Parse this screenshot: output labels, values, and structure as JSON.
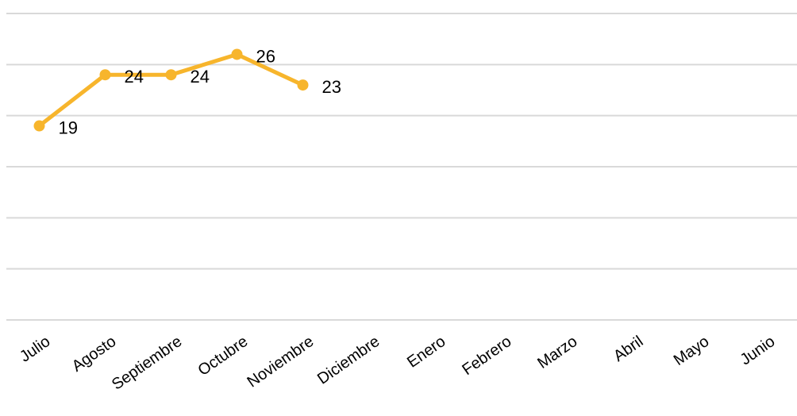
{
  "chart_data": {
    "type": "line",
    "title": "",
    "xlabel": "",
    "ylabel": "",
    "categories": [
      "Julio",
      "Agosto",
      "Septiembre",
      "Octubre",
      "Noviembre",
      "Diciembre",
      "Enero",
      "Febrero",
      "Marzo",
      "Abril",
      "Mayo",
      "Junio"
    ],
    "series": [
      {
        "values": [
          19,
          24,
          24,
          26,
          23,
          null,
          null,
          null,
          null,
          null,
          null,
          null
        ],
        "color": "#f7b52c"
      }
    ],
    "ylim": [
      0,
      30
    ],
    "y_gridlines": [
      0,
      5,
      10,
      15,
      20,
      25,
      30
    ],
    "grid": true,
    "y_tick_labels_shown": false,
    "legend": "none",
    "data_labels": true
  }
}
